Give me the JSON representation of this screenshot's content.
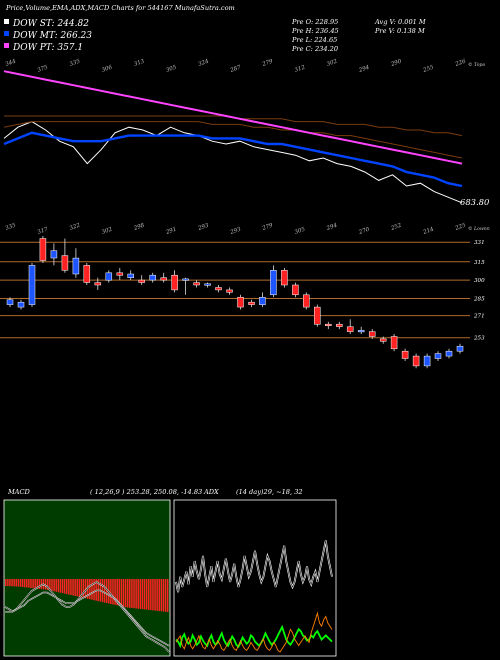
{
  "header": {
    "title": "Price,Volume,EMA,ADX,MACD Charts for 544167 MunafaSutra.com",
    "dow_st": "DOW ST: 244.82",
    "dow_mt": "DOW MT: 266.23",
    "dow_pt": "DOW PT: 357.1",
    "prev_open": "Pre   O: 228.95",
    "prev_high": "Pre   H: 236.45",
    "prev_low": "Pre   L: 224.65",
    "prev_close": "Pre   C: 234.20",
    "avg_volume": "Avg V: 0.001 M",
    "prev_volume": "Pre   V: 0.138  M"
  },
  "colors": {
    "background": "#000000",
    "dow_st": "#ffffff",
    "dow_mt": "#0044ff",
    "dow_pt": "#ff44ff",
    "ema_brown": "#7a3b10",
    "bull": "#1f55ff",
    "bear": "#ff2222",
    "level_line": "#b06a2a",
    "macd_panel_bg": "#003c00",
    "macd_bar": "#ff2222",
    "adx_line": "#ffffff",
    "di_plus": "#00ff00",
    "di_minus": "#ff7f00"
  },
  "chart_data": [
    {
      "type": "line",
      "name": "price-ema-panel",
      "side_label_top": "© Topo",
      "last_value_label": "683.80",
      "top_tick_labels": [
        "344",
        "375",
        "335",
        "306",
        "313",
        "305",
        "324",
        "287",
        "279",
        "312",
        "302",
        "294",
        "290",
        "255",
        "226"
      ],
      "series": [
        {
          "name": "",
          "values": [
            2.2,
            2.6,
            2.8,
            2.5,
            2.1,
            1.9,
            1.3,
            1.8,
            2.4,
            2.6,
            2.5,
            2.3,
            2.6,
            2.4,
            2.3,
            2.1,
            2.0,
            2.1,
            1.9,
            1.8,
            1.7,
            1.6,
            1.4,
            1.5,
            1.3,
            1.2,
            1.0,
            0.7,
            0.9,
            0.5,
            0.6,
            0.3,
            0.1,
            -0.1
          ]
        },
        {
          "name": "",
          "values": [
            2.0,
            2.2,
            2.4,
            2.3,
            2.2,
            2.1,
            2.1,
            2.1,
            2.2,
            2.3,
            2.3,
            2.3,
            2.3,
            2.3,
            2.3,
            2.2,
            2.2,
            2.2,
            2.1,
            2.0,
            2.0,
            1.9,
            1.8,
            1.7,
            1.6,
            1.5,
            1.4,
            1.3,
            1.2,
            1.0,
            0.9,
            0.8,
            0.6,
            0.5
          ]
        },
        {
          "name": "",
          "values": [
            2.6,
            2.7,
            2.8,
            2.8,
            2.8,
            2.8,
            2.8,
            2.8,
            2.8,
            2.8,
            2.8,
            2.8,
            2.8,
            2.8,
            2.8,
            2.7,
            2.7,
            2.7,
            2.6,
            2.6,
            2.5,
            2.5,
            2.4,
            2.4,
            2.3,
            2.3,
            2.2,
            2.1,
            2.0,
            1.9,
            1.8,
            1.7,
            1.6,
            1.5
          ]
        },
        {
          "name": "",
          "values": [
            3.0,
            3.0,
            3.0,
            3.0,
            3.0,
            3.0,
            3.0,
            3.0,
            3.0,
            3.0,
            3.0,
            3.0,
            3.0,
            3.0,
            3.0,
            3.0,
            3.0,
            2.9,
            2.9,
            2.9,
            2.9,
            2.8,
            2.8,
            2.8,
            2.7,
            2.7,
            2.7,
            2.6,
            2.6,
            2.5,
            2.5,
            2.4,
            2.4,
            2.3
          ]
        },
        {
          "name": "",
          "values": [
            4.6,
            4.5,
            4.4,
            4.3,
            4.2,
            4.1,
            4.0,
            3.9,
            3.8,
            3.7,
            3.6,
            3.5,
            3.4,
            3.3,
            3.2,
            3.1,
            3.0,
            2.9,
            2.8,
            2.7,
            2.6,
            2.5,
            2.4,
            2.3,
            2.2,
            2.1,
            2.0,
            1.9,
            1.8,
            1.7,
            1.6,
            1.5,
            1.4,
            1.3
          ]
        }
      ]
    },
    {
      "type": "candlestick",
      "name": "candle-panel",
      "side_label_top": "© Lownn",
      "top_tick_labels": [
        "335",
        "317",
        "322",
        "302",
        "298",
        "291",
        "293",
        "293",
        "279",
        "305",
        "294",
        "270",
        "252",
        "214",
        "225"
      ],
      "levels": [
        {
          "label": "331",
          "value": 331
        },
        {
          "label": "315",
          "value": 315
        },
        {
          "label": "300",
          "value": 300
        },
        {
          "label": "285",
          "value": 285
        },
        {
          "label": "271",
          "value": 271
        },
        {
          "label": "253",
          "value": 253
        }
      ],
      "ylim": [
        225,
        345
      ],
      "candles": [
        {
          "o": 280,
          "c": 284,
          "h": 286,
          "l": 278
        },
        {
          "o": 278,
          "c": 282,
          "h": 284,
          "l": 276
        },
        {
          "o": 280,
          "c": 312,
          "h": 314,
          "l": 278
        },
        {
          "o": 334,
          "c": 316,
          "h": 336,
          "l": 314
        },
        {
          "o": 318,
          "c": 324,
          "h": 330,
          "l": 312
        },
        {
          "o": 320,
          "c": 308,
          "h": 334,
          "l": 306
        },
        {
          "o": 305,
          "c": 318,
          "h": 326,
          "l": 302
        },
        {
          "o": 312,
          "c": 298,
          "h": 314,
          "l": 296
        },
        {
          "o": 298,
          "c": 296,
          "h": 302,
          "l": 292
        },
        {
          "o": 300,
          "c": 306,
          "h": 308,
          "l": 298
        },
        {
          "o": 306,
          "c": 304,
          "h": 310,
          "l": 300
        },
        {
          "o": 302,
          "c": 305,
          "h": 308,
          "l": 300
        },
        {
          "o": 300,
          "c": 298,
          "h": 304,
          "l": 296
        },
        {
          "o": 300,
          "c": 304,
          "h": 306,
          "l": 298
        },
        {
          "o": 302,
          "c": 300,
          "h": 306,
          "l": 298
        },
        {
          "o": 304,
          "c": 292,
          "h": 308,
          "l": 290
        },
        {
          "o": 300,
          "c": 301,
          "h": 302,
          "l": 288
        },
        {
          "o": 298,
          "c": 296,
          "h": 300,
          "l": 294
        },
        {
          "o": 296,
          "c": 297,
          "h": 298,
          "l": 294
        },
        {
          "o": 294,
          "c": 292,
          "h": 296,
          "l": 290
        },
        {
          "o": 292,
          "c": 290,
          "h": 294,
          "l": 288
        },
        {
          "o": 286,
          "c": 278,
          "h": 288,
          "l": 276
        },
        {
          "o": 282,
          "c": 280,
          "h": 284,
          "l": 278
        },
        {
          "o": 280,
          "c": 286,
          "h": 290,
          "l": 278
        },
        {
          "o": 288,
          "c": 308,
          "h": 312,
          "l": 286
        },
        {
          "o": 308,
          "c": 296,
          "h": 310,
          "l": 294
        },
        {
          "o": 296,
          "c": 288,
          "h": 298,
          "l": 286
        },
        {
          "o": 288,
          "c": 278,
          "h": 290,
          "l": 276
        },
        {
          "o": 278,
          "c": 264,
          "h": 280,
          "l": 262
        },
        {
          "o": 264,
          "c": 263,
          "h": 266,
          "l": 260
        },
        {
          "o": 264,
          "c": 262,
          "h": 266,
          "l": 260
        },
        {
          "o": 262,
          "c": 258,
          "h": 268,
          "l": 256
        },
        {
          "o": 258,
          "c": 259,
          "h": 262,
          "l": 256
        },
        {
          "o": 258,
          "c": 254,
          "h": 260,
          "l": 252
        },
        {
          "o": 252,
          "c": 250,
          "h": 254,
          "l": 248
        },
        {
          "o": 254,
          "c": 244,
          "h": 256,
          "l": 242
        },
        {
          "o": 242,
          "c": 236,
          "h": 244,
          "l": 234
        },
        {
          "o": 238,
          "c": 230,
          "h": 240,
          "l": 228
        },
        {
          "o": 230,
          "c": 238,
          "h": 240,
          "l": 228
        },
        {
          "o": 236,
          "c": 240,
          "h": 242,
          "l": 234
        },
        {
          "o": 238,
          "c": 242,
          "h": 244,
          "l": 236
        },
        {
          "o": 242,
          "c": 246,
          "h": 248,
          "l": 240
        }
      ]
    },
    {
      "type": "bar",
      "name": "macd-panel",
      "title": "MACD",
      "params": "( 12,26,9 ) 253.28,  250.08,  -14.83",
      "histogram": [
        3.0,
        3.0,
        3.0,
        3.1,
        3.1,
        3.2,
        3.2,
        3.3,
        3.4,
        3.5,
        3.6,
        3.7,
        3.8,
        3.9,
        4.0,
        4.1,
        4.2,
        4.3,
        4.4,
        4.5,
        4.6,
        4.8,
        5.0,
        5.2,
        5.4,
        5.6,
        5.8,
        6.0,
        6.2,
        6.4,
        6.6,
        6.8,
        7.0,
        7.2,
        7.4,
        7.6,
        7.8,
        8.0,
        8.2,
        8.4,
        8.6,
        8.8,
        9.0,
        9.2,
        9.4,
        9.6,
        9.8,
        10.0,
        10.2,
        10.4,
        10.6,
        10.8,
        11.0,
        11.2,
        11.4,
        11.6,
        11.8,
        12.0,
        12.1,
        12.2,
        12.3,
        12.4,
        12.5,
        12.6,
        12.7,
        12.8,
        12.9,
        13.0,
        13.1,
        13.2,
        13.3,
        13.4,
        13.5,
        13.6,
        13.7,
        13.8,
        13.9,
        14.0
      ],
      "macd_line": [
        15,
        14,
        13,
        14,
        16,
        18,
        20,
        22,
        23,
        24,
        25,
        24,
        22,
        20,
        18,
        16,
        15,
        15,
        16,
        18,
        20,
        22,
        24,
        25,
        26,
        25,
        24,
        22,
        20,
        18,
        16,
        14,
        12,
        10,
        8,
        6,
        4,
        2,
        1,
        0,
        -1,
        -2,
        -3,
        -5
      ],
      "signal_line": [
        13,
        13,
        13,
        14,
        15,
        16,
        18,
        19,
        20,
        21,
        22,
        22,
        21,
        20,
        19,
        18,
        17,
        17,
        17,
        18,
        19,
        20,
        21,
        22,
        23,
        23,
        22,
        21,
        20,
        19,
        17,
        15,
        13,
        11,
        9,
        7,
        5,
        3,
        2,
        1,
        0,
        -1,
        -2,
        -3
      ]
    },
    {
      "type": "line",
      "name": "adx-panel",
      "title": "ADX",
      "params": "(14 day)29, ~18, 32",
      "series": [
        {
          "name": "",
          "values": [
            62,
            58,
            64,
            60,
            63,
            66,
            61,
            68,
            64,
            70,
            66,
            63,
            67,
            72,
            65,
            60,
            64,
            68,
            62,
            66,
            70,
            65,
            63,
            67,
            71,
            66,
            62,
            65,
            69,
            64,
            60,
            63,
            67,
            72,
            68,
            64,
            66,
            70,
            74,
            69,
            65,
            62,
            64,
            68,
            72,
            70,
            66,
            63,
            60,
            64,
            68,
            72,
            76,
            70,
            66,
            62,
            60,
            62,
            66,
            70,
            65,
            62,
            64,
            68,
            63,
            61,
            64,
            66,
            62,
            66,
            70,
            74,
            78,
            72,
            68,
            64
          ]
        },
        {
          "name": "",
          "values": [
            20,
            18,
            14,
            22,
            25,
            19,
            16,
            18,
            24,
            20,
            15,
            17,
            23,
            19,
            16,
            14,
            20,
            24,
            18,
            15,
            17,
            22,
            26,
            20,
            16,
            14,
            18,
            23,
            20,
            15,
            13,
            17,
            22,
            19,
            16,
            18,
            24,
            22,
            18,
            16,
            14,
            17,
            21,
            26,
            22,
            18,
            15,
            17,
            20,
            24,
            28,
            32,
            26,
            20,
            17,
            15,
            18,
            22,
            26,
            30,
            28,
            24,
            22,
            19,
            20,
            24,
            22,
            26,
            28,
            24,
            20,
            22,
            24,
            22,
            20,
            18
          ]
        },
        {
          "name": "",
          "values": [
            14,
            16,
            18,
            12,
            10,
            14,
            17,
            12,
            10,
            12,
            15,
            18,
            14,
            11,
            10,
            13,
            16,
            12,
            10,
            12,
            15,
            13,
            10,
            9,
            11,
            14,
            16,
            12,
            10,
            9,
            12,
            15,
            12,
            10,
            9,
            11,
            14,
            12,
            10,
            9,
            11,
            14,
            16,
            12,
            10,
            9,
            11,
            14,
            12,
            9,
            8,
            10,
            12,
            14,
            18,
            22,
            20,
            16,
            14,
            12,
            14,
            16,
            18,
            16,
            14,
            20,
            24,
            28,
            32,
            26,
            24,
            28,
            30,
            26,
            24,
            22
          ]
        }
      ]
    }
  ]
}
